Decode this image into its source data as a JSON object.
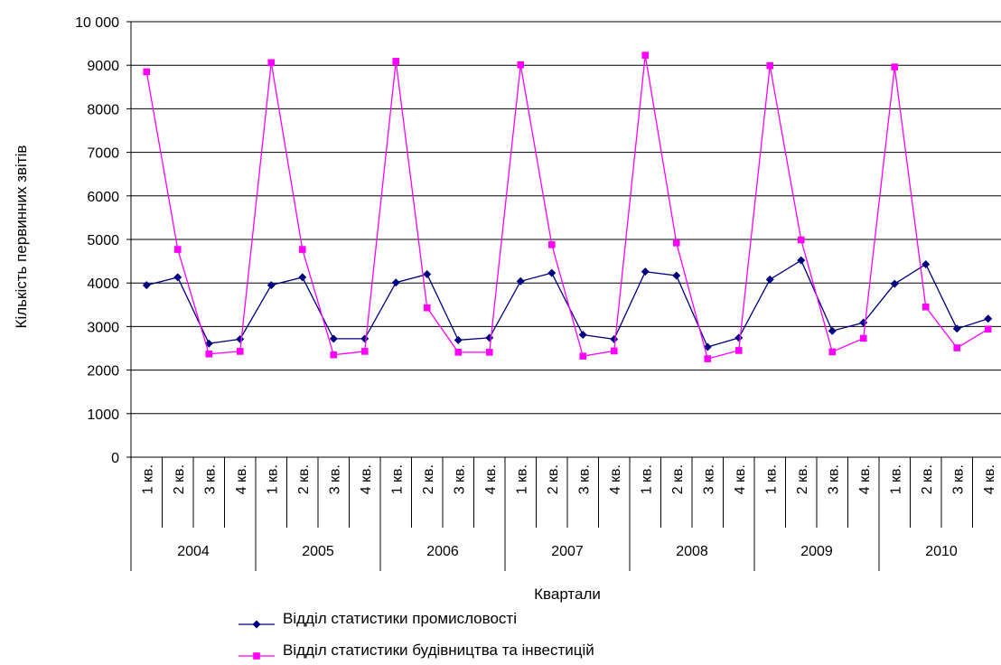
{
  "chart_data": {
    "type": "line",
    "xlabel": "Квартали",
    "ylabel": "Кількість первинних звітів",
    "ylim": [
      0,
      10000
    ],
    "y_ticks": [
      0,
      1000,
      2000,
      3000,
      4000,
      5000,
      6000,
      7000,
      8000,
      9000,
      10000
    ],
    "y_tick_labels": [
      "0",
      "1000",
      "2000",
      "3000",
      "4000",
      "5000",
      "6000",
      "7000",
      "8000",
      "9000",
      "10 000"
    ],
    "grid": "horizontal",
    "legend_position": "bottom",
    "quarter_labels": [
      "1 кв.",
      "2 кв.",
      "3 кв.",
      "4 кв."
    ],
    "years": [
      "2004",
      "2005",
      "2006",
      "2007",
      "2008",
      "2009",
      "2010"
    ],
    "series": [
      {
        "name": "Відділ статистики промисловості",
        "color": "#000080",
        "marker": "diamond",
        "values": [
          3950,
          4130,
          2610,
          2710,
          3950,
          4130,
          2720,
          2720,
          4010,
          4200,
          2690,
          2740,
          4040,
          4230,
          2810,
          2710,
          4260,
          4170,
          2530,
          2740,
          4080,
          4520,
          2900,
          3090,
          3980,
          4430,
          2950,
          3180
        ]
      },
      {
        "name": "Відділ статистики будівництва та інвестицій",
        "color": "#ff00ff",
        "marker": "square",
        "values": [
          8850,
          4770,
          2370,
          2430,
          9060,
          4770,
          2350,
          2430,
          9090,
          3430,
          2410,
          2410,
          9010,
          4880,
          2320,
          2440,
          9230,
          4920,
          2260,
          2450,
          8990,
          4990,
          2420,
          2730,
          8960,
          3450,
          2510,
          2940
        ]
      }
    ]
  }
}
